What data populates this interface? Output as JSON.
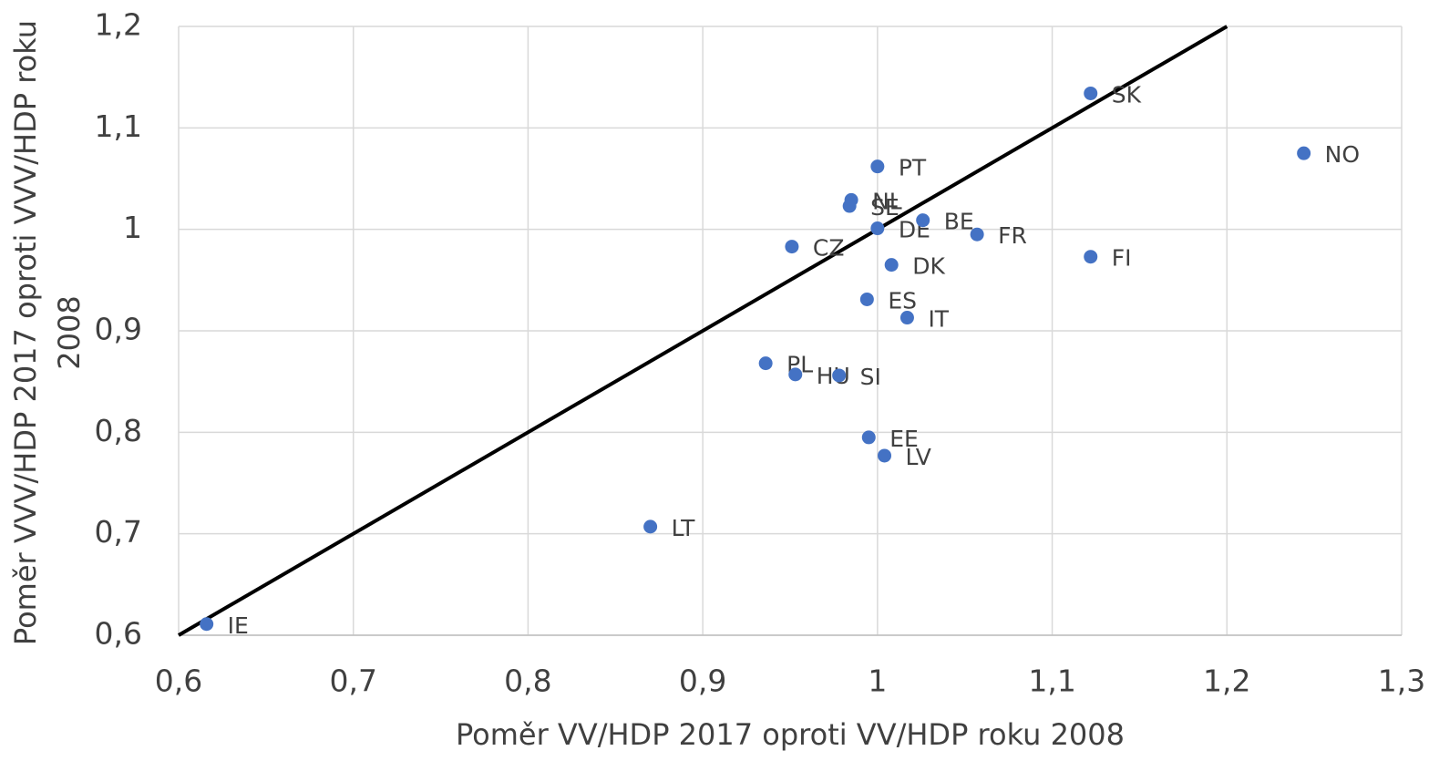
{
  "chart_data": {
    "type": "scatter",
    "xlabel": "Poměr VV/HDP 2017 oproti VV/HDP roku 2008",
    "ylabel": [
      "Poměr VVV/HDP 2017 oproti VVV/HDP roku",
      "2008"
    ],
    "series": [
      {
        "color": "#4472c4",
        "labels": [
          "SK",
          "NO",
          "PT",
          "NL",
          "SE",
          "DE",
          "BE",
          "FR",
          "CZ",
          "FI",
          "DK",
          "ES",
          "IT",
          "PL",
          "HU",
          "SI",
          "EE",
          "LV",
          "LT",
          "IE"
        ],
        "x": [
          1.122,
          1.244,
          1.0,
          0.985,
          0.984,
          1.0,
          1.026,
          1.057,
          0.951,
          1.122,
          1.008,
          0.994,
          1.017,
          0.936,
          0.953,
          0.978,
          0.995,
          1.004,
          0.87,
          0.616
        ],
        "values": [
          1.134,
          1.075,
          1.062,
          1.029,
          1.023,
          1.001,
          1.009,
          0.995,
          0.983,
          0.973,
          0.965,
          0.931,
          0.913,
          0.868,
          0.857,
          0.856,
          0.795,
          0.777,
          0.707,
          0.611
        ]
      }
    ],
    "line": {
      "x": [
        0.6,
        1.2
      ],
      "values": [
        0.6,
        1.2
      ],
      "color": "#000000"
    },
    "xlim": [
      0.6,
      1.3
    ],
    "xticks": [
      {
        "value": 0.6,
        "label": "0,6"
      },
      {
        "value": 0.7,
        "label": "0,7"
      },
      {
        "value": 0.8,
        "label": "0,8"
      },
      {
        "value": 0.9,
        "label": "0,9"
      },
      1,
      {
        "value": 1.1,
        "label": "1,1"
      },
      {
        "value": 1.2,
        "label": "1,2"
      },
      {
        "value": 1.3,
        "label": "1,3"
      }
    ],
    "ylim": [
      0.6,
      1.2
    ],
    "yticks": [
      {
        "value": 0.6,
        "label": "0,6"
      },
      {
        "value": 0.7,
        "label": "0,7"
      },
      {
        "value": 0.8,
        "label": "0,8"
      },
      {
        "value": 0.9,
        "label": "0,9"
      },
      1,
      {
        "value": 1.1,
        "label": "1,1"
      },
      {
        "value": 1.2,
        "label": "1,2"
      }
    ],
    "grid": true
  }
}
